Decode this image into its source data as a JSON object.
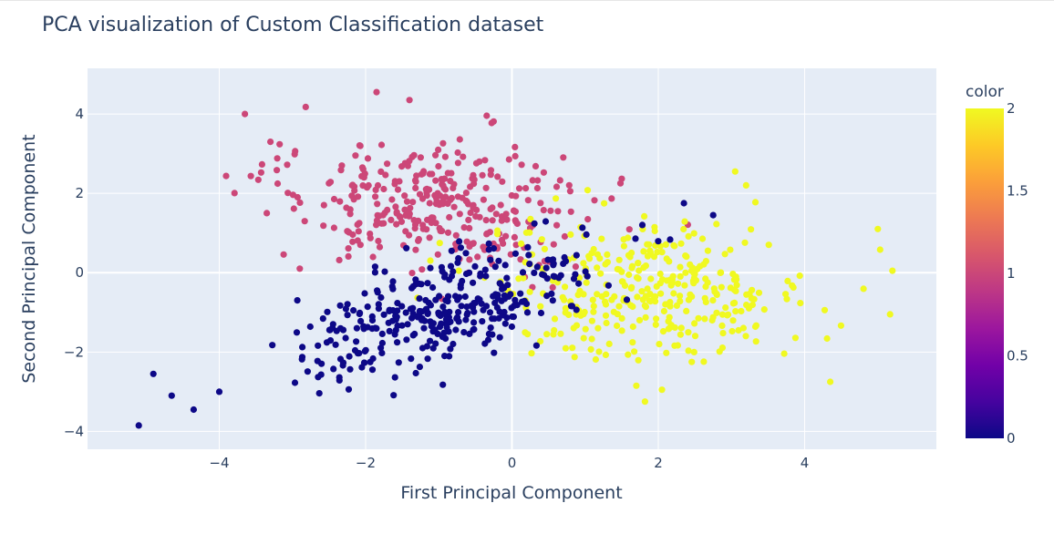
{
  "chart_data": {
    "type": "scatter",
    "title": "PCA visualization of Custom Classification dataset",
    "xlabel": "First Principal Component",
    "ylabel": "Second Principal Component",
    "xlim": [
      -5.8,
      5.8
    ],
    "ylim": [
      -4.45,
      5.15
    ],
    "xticks": [
      -4,
      -2,
      0,
      2,
      4
    ],
    "xtick_labels": [
      "−4",
      "−2",
      "0",
      "2",
      "4"
    ],
    "yticks": [
      -4,
      -2,
      0,
      2,
      4
    ],
    "ytick_labels": [
      "−4",
      "−2",
      "0",
      "2",
      "4"
    ],
    "colorbar": {
      "title": "color",
      "range": [
        0,
        2
      ],
      "ticks": [
        0,
        0.5,
        1,
        1.5,
        2
      ],
      "tick_labels": [
        "0",
        "0.5",
        "1",
        "1.5",
        "2"
      ],
      "colors": [
        "#0d0887",
        "#46039f",
        "#7201a8",
        "#9c179e",
        "#bd3786",
        "#d8576b",
        "#ed7953",
        "#fb9f3a",
        "#fdca26",
        "#f0f921"
      ]
    },
    "plot_background": "#e5ecf6",
    "grid": true,
    "classes": [
      {
        "value": 0,
        "color": "#0d0887",
        "count": 340,
        "center": [
          -0.9,
          -0.9
        ],
        "spread": [
          1.2,
          0.55
        ],
        "tilt": 0.62
      },
      {
        "value": 1,
        "color": "#cc4778",
        "count": 330,
        "center": [
          -1.0,
          1.75
        ],
        "spread": [
          1.05,
          0.85
        ],
        "tilt": -0.35
      },
      {
        "value": 2,
        "color": "#f0f921",
        "count": 340,
        "center": [
          1.9,
          -0.45
        ],
        "spread": [
          1.1,
          0.85
        ],
        "tilt": 0.05
      }
    ],
    "notable_points": [
      {
        "x": -5.1,
        "y": -3.85,
        "class": 0
      },
      {
        "x": -4.9,
        "y": -2.55,
        "class": 0
      },
      {
        "x": -4.65,
        "y": -3.1,
        "class": 0
      },
      {
        "x": -4.35,
        "y": -3.45,
        "class": 0
      },
      {
        "x": -4.0,
        "y": -3.0,
        "class": 0
      },
      {
        "x": -3.65,
        "y": 4.0,
        "class": 1
      },
      {
        "x": -3.3,
        "y": 3.3,
        "class": 1
      },
      {
        "x": -3.35,
        "y": 1.5,
        "class": 1
      },
      {
        "x": -1.85,
        "y": 4.55,
        "class": 1
      },
      {
        "x": -1.4,
        "y": 4.35,
        "class": 1
      },
      {
        "x": 3.05,
        "y": 2.55,
        "class": 2
      },
      {
        "x": 3.2,
        "y": 2.2,
        "class": 2
      },
      {
        "x": 5.2,
        "y": 0.05,
        "class": 2
      },
      {
        "x": 5.0,
        "y": 1.1,
        "class": 2
      },
      {
        "x": 4.35,
        "y": -2.75,
        "class": 2
      },
      {
        "x": 1.7,
        "y": -2.85,
        "class": 2
      },
      {
        "x": 2.05,
        "y": -2.95,
        "class": 2
      },
      {
        "x": 2.35,
        "y": 1.75,
        "class": 0
      },
      {
        "x": 2.75,
        "y": 1.45,
        "class": 0
      }
    ]
  }
}
